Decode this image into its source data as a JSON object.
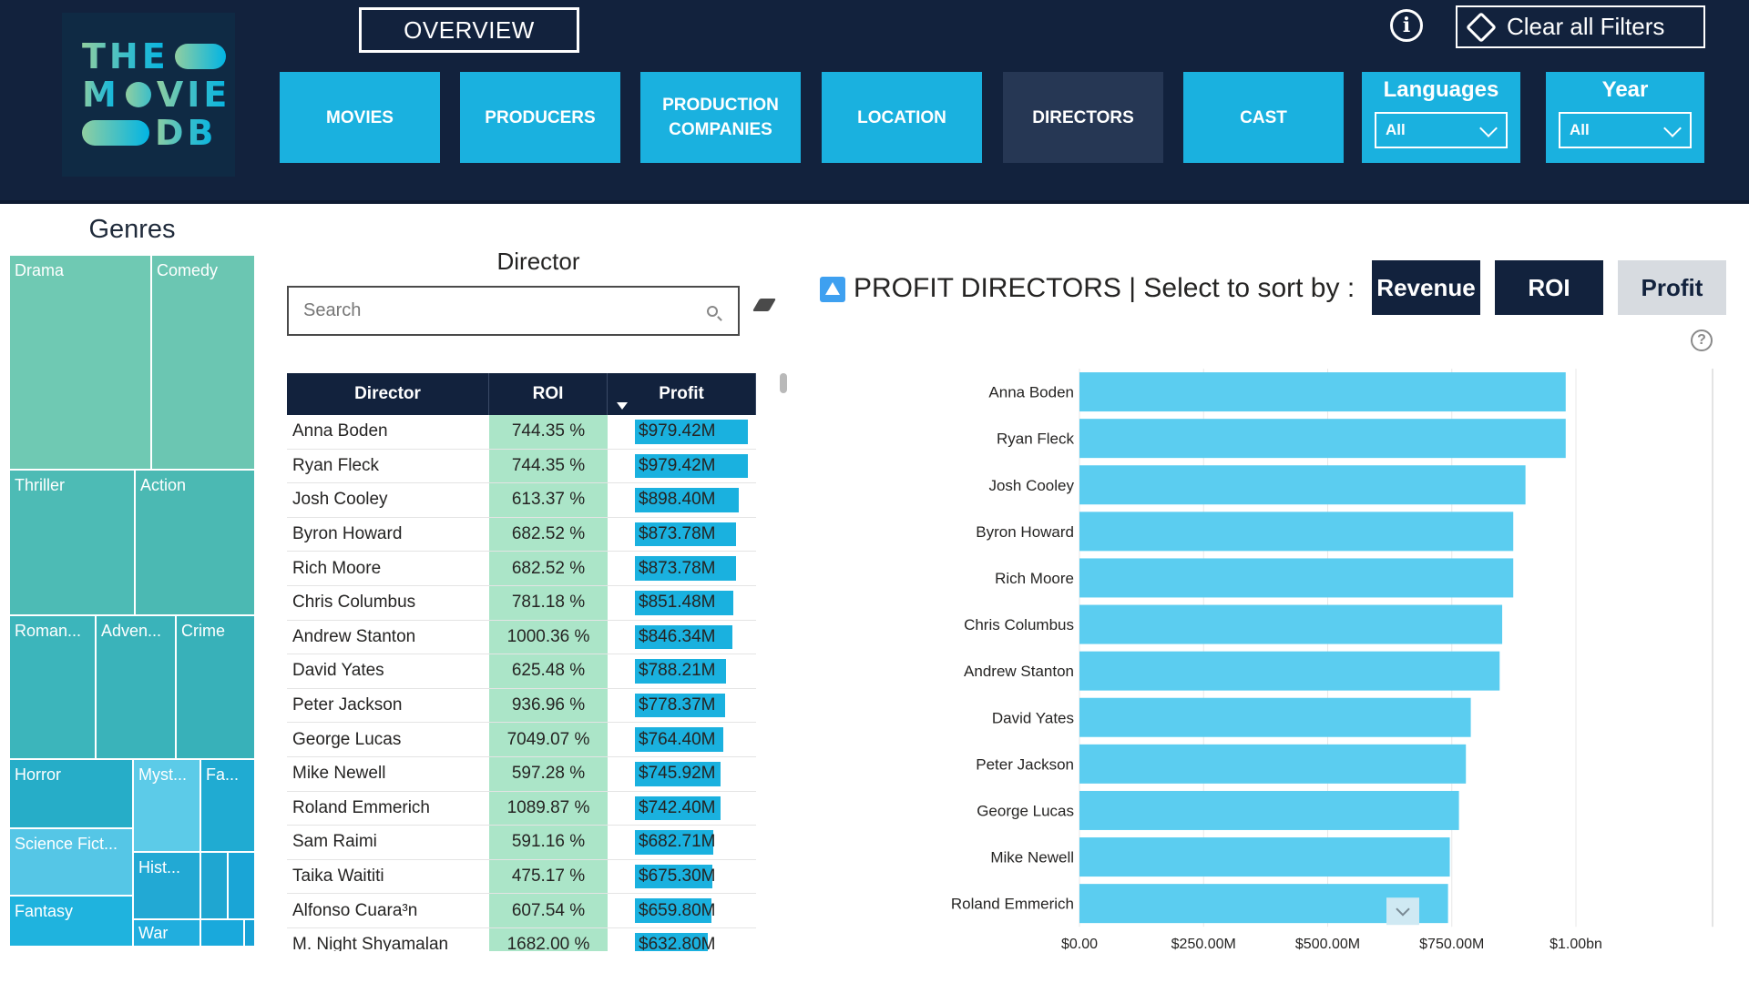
{
  "header": {
    "logo": {
      "line1": "THE",
      "line2": "M",
      "line2b": "VIE",
      "line3": "DB"
    },
    "overview_label": "OVERVIEW",
    "clear_filters_label": "Clear all Filters",
    "info_icon": "info-icon",
    "nav": [
      {
        "label": "MOVIES"
      },
      {
        "label": "PRODUCERS"
      },
      {
        "label": "PRODUCTION COMPANIES"
      },
      {
        "label": "LOCATION"
      },
      {
        "label": "DIRECTORS",
        "active": true
      },
      {
        "label": "CAST"
      }
    ],
    "filters": [
      {
        "title": "Languages",
        "value": "All"
      },
      {
        "title": "Year",
        "value": "All"
      }
    ]
  },
  "genres": {
    "title": "Genres",
    "tiles": [
      {
        "label": "Drama",
        "color": "#6fc9b3"
      },
      {
        "label": "Comedy",
        "color": "#6bc6b2"
      },
      {
        "label": "Thriller",
        "color": "#4dbbb5"
      },
      {
        "label": "Action",
        "color": "#4bb9b3"
      },
      {
        "label": "Roman...",
        "color": "#3cb5bb"
      },
      {
        "label": "Adven...",
        "color": "#3ab3ba"
      },
      {
        "label": "Crime",
        "color": "#38b1b9"
      },
      {
        "label": "Horror",
        "color": "#26adc8"
      },
      {
        "label": "Myst...",
        "color": "#5ccbe8"
      },
      {
        "label": "Fa...",
        "color": "#20abd2"
      },
      {
        "label": "Science Fict...",
        "color": "#55c6e6"
      },
      {
        "label": "Hist...",
        "color": "#22a9d4"
      },
      {
        "label": "Fantasy",
        "color": "#1fb3de"
      },
      {
        "label": "War",
        "color": "#21aede"
      }
    ]
  },
  "director_panel": {
    "title": "Director",
    "search_placeholder": "Search",
    "columns": {
      "director": "Director",
      "roi": "ROI",
      "profit": "Profit"
    },
    "rows": [
      {
        "director": "Anna Boden",
        "roi": "744.35 %",
        "profit": "$979.42M",
        "profit_value": 979.42
      },
      {
        "director": "Ryan Fleck",
        "roi": "744.35 %",
        "profit": "$979.42M",
        "profit_value": 979.42
      },
      {
        "director": "Josh Cooley",
        "roi": "613.37 %",
        "profit": "$898.40M",
        "profit_value": 898.4
      },
      {
        "director": "Byron Howard",
        "roi": "682.52 %",
        "profit": "$873.78M",
        "profit_value": 873.78
      },
      {
        "director": "Rich Moore",
        "roi": "682.52 %",
        "profit": "$873.78M",
        "profit_value": 873.78
      },
      {
        "director": "Chris Columbus",
        "roi": "781.18 %",
        "profit": "$851.48M",
        "profit_value": 851.48
      },
      {
        "director": "Andrew Stanton",
        "roi": "1000.36 %",
        "profit": "$846.34M",
        "profit_value": 846.34
      },
      {
        "director": "David Yates",
        "roi": "625.48 %",
        "profit": "$788.21M",
        "profit_value": 788.21
      },
      {
        "director": "Peter Jackson",
        "roi": "936.96 %",
        "profit": "$778.37M",
        "profit_value": 778.37
      },
      {
        "director": "George Lucas",
        "roi": "7049.07 %",
        "profit": "$764.40M",
        "profit_value": 764.4
      },
      {
        "director": "Mike Newell",
        "roi": "597.28 %",
        "profit": "$745.92M",
        "profit_value": 745.92
      },
      {
        "director": "Roland Emmerich",
        "roi": "1089.87 %",
        "profit": "$742.40M",
        "profit_value": 742.4
      },
      {
        "director": "Sam Raimi",
        "roi": "591.16 %",
        "profit": "$682.71M",
        "profit_value": 682.71
      },
      {
        "director": "Taika Waititi",
        "roi": "475.17 %",
        "profit": "$675.30M",
        "profit_value": 675.3
      },
      {
        "director": "Alfonso Cuara³n",
        "roi": "607.54 %",
        "profit": "$659.80M",
        "profit_value": 659.8
      },
      {
        "director": "M. Night Shyamalan",
        "roi": "1682.00 %",
        "profit": "$632.80M",
        "profit_value": 632.8
      }
    ]
  },
  "profit_chart": {
    "title": "PROFIT DIRECTORS | Select to sort by :",
    "sort_buttons": [
      {
        "label": "Revenue",
        "color": "#12223d",
        "text_color": "#ffffff"
      },
      {
        "label": "ROI",
        "color": "#12223d",
        "text_color": "#ffffff"
      },
      {
        "label": "Profit",
        "color": "#d7dbe0",
        "text_color": "#12223d",
        "selected": true
      }
    ],
    "help_icon": "help-icon"
  },
  "chart_data": {
    "type": "bar",
    "orientation": "horizontal",
    "categories": [
      "Anna Boden",
      "Ryan Fleck",
      "Josh Cooley",
      "Byron Howard",
      "Rich Moore",
      "Chris Columbus",
      "Andrew Stanton",
      "David Yates",
      "Peter Jackson",
      "George Lucas",
      "Mike Newell",
      "Roland Emmerich"
    ],
    "values": [
      979.42,
      979.42,
      898.4,
      873.78,
      873.78,
      851.48,
      846.34,
      788.21,
      778.37,
      764.4,
      745.92,
      742.4
    ],
    "unit": "M",
    "xlim": [
      0,
      1000
    ],
    "xticks": [
      0,
      250,
      500,
      750,
      1000
    ],
    "xtick_labels": [
      "$0.00",
      "$250.00M",
      "$500.00M",
      "$750.00M",
      "$1.00bn"
    ],
    "bar_color": "#5bcdf0",
    "grid": true,
    "title": "",
    "xlabel": "",
    "ylabel": ""
  }
}
